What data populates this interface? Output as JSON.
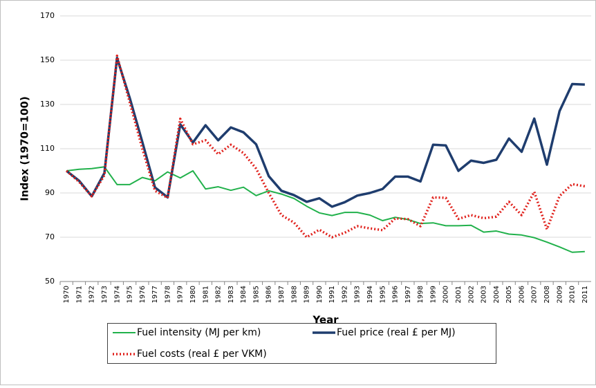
{
  "chart_data": {
    "type": "line",
    "y_label": "Index (1970=100)",
    "x_label": "Year",
    "categories": [
      "1970",
      "1971",
      "1972",
      "1973",
      "1974",
      "1975",
      "1976",
      "1977",
      "1978",
      "1979",
      "1980",
      "1981",
      "1982",
      "1983",
      "1984",
      "1985",
      "1986",
      "1987",
      "1988",
      "1989",
      "1990",
      "1991",
      "1992",
      "1993",
      "1994",
      "1995",
      "1996",
      "1997",
      "1998",
      "1999",
      "2000",
      "2001",
      "2002",
      "2003",
      "2004",
      "2005",
      "2006",
      "2007",
      "2008",
      "2009",
      "2010",
      "2011"
    ],
    "series": [
      {
        "name": "Fuel intensity (MJ per km)",
        "color": "#21b14b",
        "width": 2,
        "line_style": "solid",
        "values": [
          100,
          100.7,
          101,
          101.8,
          93.8,
          93.8,
          97,
          95.5,
          99.5,
          96.8,
          100,
          91.8,
          92.8,
          91.2,
          92.6,
          88.8,
          91,
          89.5,
          87.5,
          84,
          81,
          79.8,
          81.2,
          81.2,
          80,
          77.5,
          79,
          78,
          76.2,
          76.5,
          75.2,
          75.2,
          75.4,
          72.3,
          72.8,
          71.4,
          71,
          69.8,
          67.8,
          65.6,
          63.2,
          63.5
        ]
      },
      {
        "name": "Fuel price (real £ per MJ)",
        "color": "#1f3d6e",
        "width": 3.5,
        "line_style": "solid",
        "values": [
          100,
          95.5,
          88.5,
          99,
          151,
          133,
          113,
          92.5,
          88,
          121,
          112.8,
          120.6,
          113.8,
          119.6,
          117.4,
          112,
          97.6,
          91,
          89,
          86,
          87.6,
          83.8,
          85.8,
          88.8,
          90,
          91.8,
          97.4,
          97.4,
          95.2,
          111.8,
          111.5,
          100,
          104.6,
          103.6,
          105,
          114.6,
          108.6,
          123.6,
          102.8,
          127,
          139.2,
          139
        ]
      },
      {
        "name": "Fuel costs (real £ per VKM)",
        "color": "#e0201b",
        "width": 3.5,
        "line_style": "dotted",
        "values": [
          100,
          95,
          88.5,
          98,
          152,
          131,
          110,
          91,
          87.8,
          123.5,
          112,
          113.8,
          107.5,
          111.8,
          108,
          101,
          90,
          80,
          76.6,
          70,
          73.4,
          70,
          72,
          75,
          74,
          73.2,
          78.5,
          78.2,
          75,
          88,
          87.8,
          78.3,
          80,
          78.6,
          79.3,
          86,
          80,
          90.5,
          73.6,
          88.6,
          94,
          93
        ]
      }
    ],
    "ylim": [
      50,
      170
    ],
    "yticks": [
      50,
      70,
      90,
      110,
      130,
      150,
      170
    ],
    "grid": true,
    "legend": "bottom"
  }
}
